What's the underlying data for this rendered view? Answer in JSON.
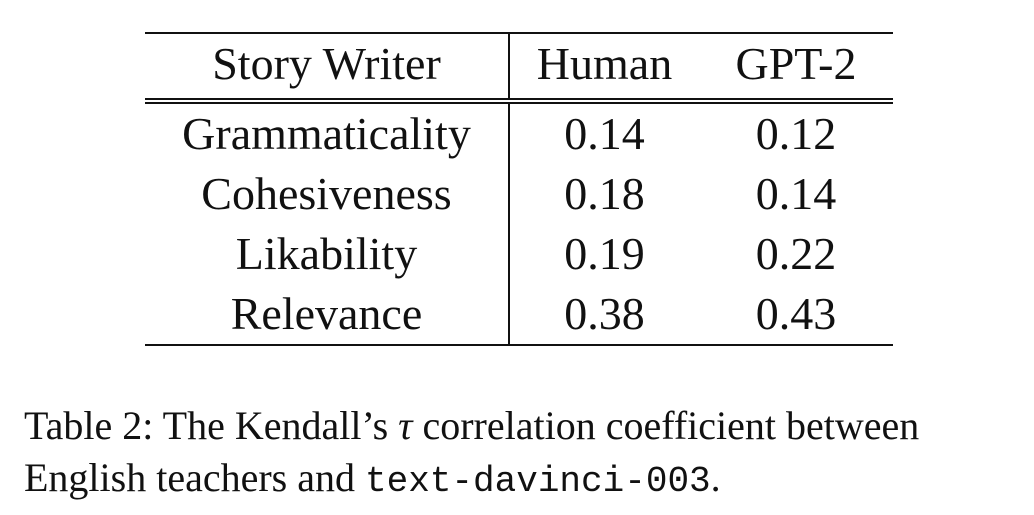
{
  "table": {
    "headers": [
      "Story Writer",
      "Human",
      "GPT-2"
    ],
    "rows": [
      [
        "Grammaticality",
        "0.14",
        "0.12"
      ],
      [
        "Cohesiveness",
        "0.18",
        "0.14"
      ],
      [
        "Likability",
        "0.19",
        "0.22"
      ],
      [
        "Relevance",
        "0.38",
        "0.43"
      ]
    ]
  },
  "caption": {
    "label": "Table 2:",
    "part1": "The Kendall’s",
    "symbol": "τ",
    "part2": "correlation coefficient between English teachers and",
    "code": "text-davinci-003",
    "end": "."
  }
}
